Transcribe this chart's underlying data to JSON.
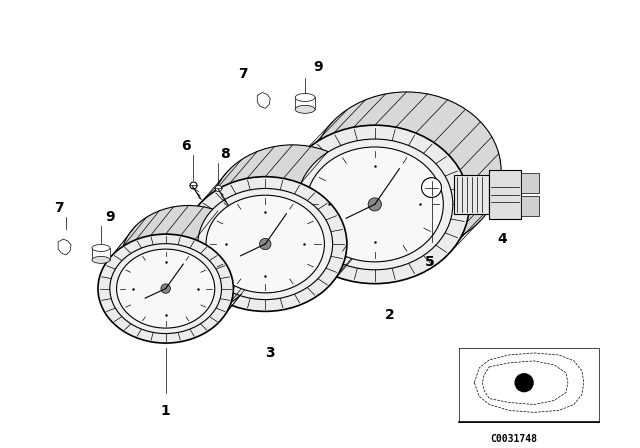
{
  "bg_color": "#ffffff",
  "line_color": "#000000",
  "fig_width": 6.4,
  "fig_height": 4.48,
  "dpi": 100,
  "diagram_code_text": "C0031748"
}
